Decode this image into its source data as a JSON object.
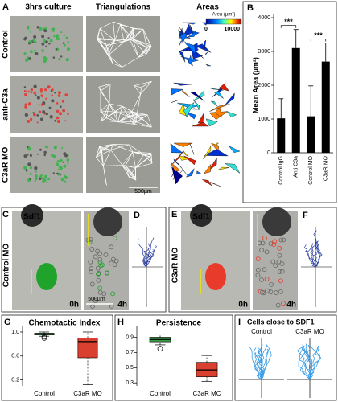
{
  "panels": {
    "A": {
      "letter": "A",
      "columns": [
        "3hrs culture",
        "Triangulations",
        "Areas"
      ],
      "rows": [
        "Control",
        "anti-C3a",
        "C3aR MO"
      ],
      "scale_bar": "500µm",
      "colorbar": {
        "label": "Area (µm²)",
        "ticks": [
          0,
          10000
        ]
      }
    },
    "C": {
      "letter": "C",
      "row_label": "Control MO",
      "stain": "Sdf1",
      "times": [
        "0h",
        "4h"
      ],
      "scale_bar": "500µm"
    },
    "D": {
      "letter": "D"
    },
    "E": {
      "letter": "E",
      "row_label": "C3aR MO",
      "stain": "Sdf1",
      "times": [
        "0h",
        "4h"
      ]
    },
    "F": {
      "letter": "F"
    },
    "I": {
      "letter": "I",
      "title": "Cells close to SDF1",
      "groups": [
        "Control",
        "C3aR MO"
      ]
    }
  },
  "chart_data": [
    {
      "letter": "B",
      "type": "bar",
      "ylabel": "Mean Area (µm²)",
      "categories": [
        "Control IgG",
        "Anti C3a",
        "Control MO",
        "C3aR MO"
      ],
      "values": [
        1020,
        3100,
        1080,
        2700
      ],
      "errors": [
        580,
        550,
        900,
        550
      ],
      "color": "#000000",
      "ylim": [
        0,
        4000
      ],
      "yticks": [
        0,
        1000,
        2000,
        3000,
        4000
      ],
      "annotations": [
        "***",
        "***"
      ]
    },
    {
      "letter": "G",
      "type": "box",
      "title": "Chemotactic Index",
      "boxes": [
        {
          "name": "Control",
          "color": "#3a9a48",
          "min": 0.93,
          "q1": 0.95,
          "median": 0.97,
          "q3": 0.98,
          "max": 1.0,
          "outliers": [
            0.9,
            0.92
          ]
        },
        {
          "name": "C3aR MO",
          "color": "#d9402f",
          "min": 0.12,
          "q1": 0.57,
          "median": 0.84,
          "q3": 0.9,
          "max": 1.0,
          "outliers": []
        }
      ],
      "ylim": [
        0.1,
        1.04
      ],
      "yticks": [
        0.2,
        0.6,
        {
          "value": 1,
          "label": "1.0"
        }
      ]
    },
    {
      "letter": "H",
      "type": "box",
      "title": "Persistence",
      "boxes": [
        {
          "name": "Control",
          "color": "#3a9a48",
          "min": 0.8,
          "q1": 0.84,
          "median": 0.87,
          "q3": 0.9,
          "max": 0.94,
          "outliers": [
            0.75
          ]
        },
        {
          "name": "C3aR MC",
          "color": "#d9402f",
          "min": 0.32,
          "q1": 0.38,
          "median": 0.47,
          "q3": 0.57,
          "max": 0.66,
          "outliers": []
        }
      ],
      "ylim": [
        0.26,
        1.0
      ],
      "yticks": [
        0.3,
        0.5,
        0.7,
        0.9
      ]
    }
  ]
}
